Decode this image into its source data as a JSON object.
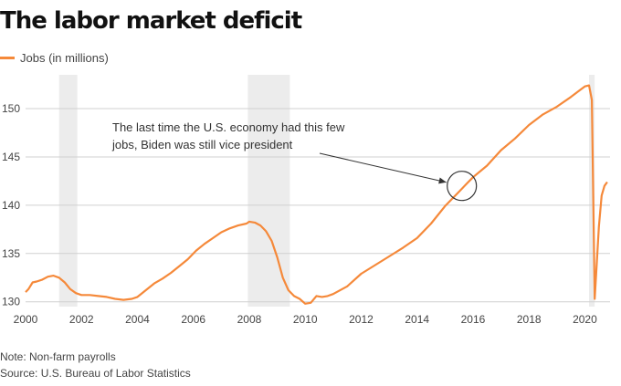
{
  "title": "The labor market deficit",
  "notes": {
    "note": "Note: Non-farm payrolls",
    "source": "Source: U.S. Bureau of Labor Statistics"
  },
  "colors": {
    "line": "#f5893a",
    "recession": "#ececec",
    "grid": "#d0d0d0",
    "annotation": "#333333"
  },
  "chart_data": {
    "type": "line",
    "title": "The labor market deficit",
    "xlabel": "",
    "ylabel": "",
    "xlim": [
      2000,
      2020.9
    ],
    "ylim": [
      129.5,
      153.5
    ],
    "x_ticks": [
      2000,
      2002,
      2004,
      2006,
      2008,
      2010,
      2012,
      2014,
      2016,
      2018,
      2020
    ],
    "x_tick_labels": [
      "2000",
      "2002",
      "2004",
      "2006",
      "2008",
      "2010",
      "2012",
      "2014",
      "2016",
      "2018",
      "2020"
    ],
    "y_ticks": [
      130,
      135,
      140,
      145,
      150
    ],
    "y_tick_labels": [
      "130",
      "135",
      "140",
      "145",
      "150"
    ],
    "grid": "horizontal",
    "legend": {
      "position": "top-left",
      "entries": [
        "Jobs (in millions)"
      ]
    },
    "recessions": [
      [
        2001.2,
        2001.85
      ],
      [
        2007.95,
        2009.45
      ],
      [
        2020.15,
        2020.35
      ]
    ],
    "series": [
      {
        "name": "Jobs (in millions)",
        "x": [
          2000.0,
          2000.1,
          2000.25,
          2000.4,
          2000.6,
          2000.8,
          2001.0,
          2001.2,
          2001.4,
          2001.6,
          2001.8,
          2002.0,
          2002.3,
          2002.6,
          2002.9,
          2003.2,
          2003.5,
          2003.8,
          2004.0,
          2004.3,
          2004.6,
          2004.9,
          2005.2,
          2005.5,
          2005.8,
          2006.1,
          2006.4,
          2006.7,
          2007.0,
          2007.3,
          2007.6,
          2007.9,
          2008.0,
          2008.2,
          2008.4,
          2008.6,
          2008.8,
          2009.0,
          2009.2,
          2009.4,
          2009.6,
          2009.8,
          2010.0,
          2010.2,
          2010.4,
          2010.6,
          2010.8,
          2011.0,
          2011.5,
          2012.0,
          2012.5,
          2013.0,
          2013.5,
          2014.0,
          2014.5,
          2015.0,
          2015.5,
          2015.8,
          2016.0,
          2016.5,
          2017.0,
          2017.5,
          2018.0,
          2018.5,
          2019.0,
          2019.5,
          2020.0,
          2020.15,
          2020.25,
          2020.35,
          2020.5,
          2020.6,
          2020.7,
          2020.8
        ],
        "y": [
          131.0,
          131.3,
          132.0,
          132.1,
          132.3,
          132.6,
          132.7,
          132.5,
          132.0,
          131.3,
          130.9,
          130.7,
          130.7,
          130.6,
          130.5,
          130.3,
          130.2,
          130.3,
          130.5,
          131.2,
          131.9,
          132.4,
          133.0,
          133.7,
          134.4,
          135.3,
          136.0,
          136.6,
          137.2,
          137.6,
          137.9,
          138.1,
          138.3,
          138.2,
          137.9,
          137.3,
          136.3,
          134.6,
          132.5,
          131.2,
          130.6,
          130.3,
          129.8,
          129.9,
          130.6,
          130.5,
          130.6,
          130.8,
          131.6,
          132.9,
          133.8,
          134.7,
          135.6,
          136.6,
          138.1,
          139.9,
          141.4,
          142.3,
          142.9,
          144.1,
          145.7,
          146.9,
          148.3,
          149.4,
          150.2,
          151.2,
          152.3,
          152.4,
          150.9,
          130.3,
          137.8,
          141.0,
          142.0,
          142.4
        ]
      }
    ],
    "annotations": [
      {
        "text_lines": [
          "The last time the U.S. economy had this few",
          "jobs, Biden was still vice president"
        ],
        "target": {
          "x": 2015.6,
          "y": 142.0
        }
      }
    ]
  }
}
